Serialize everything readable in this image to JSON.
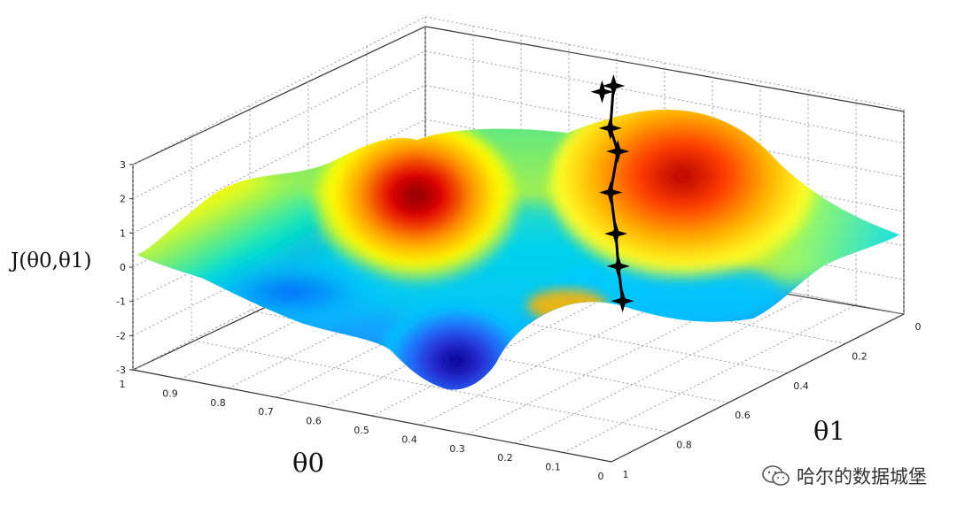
{
  "chart_data": {
    "type": "surface",
    "title": "",
    "xlabel": "θ0",
    "ylabel": "θ1",
    "zlabel": "J(θ0,θ1)",
    "x_ticks": [
      "1",
      "0.9",
      "0.8",
      "0.7",
      "0.6",
      "0.5",
      "0.4",
      "0.3",
      "0.2",
      "0.1",
      "0"
    ],
    "y_ticks": [
      "0",
      "0.2",
      "0.4",
      "0.6",
      "0.8",
      "1"
    ],
    "z_ticks": [
      "3",
      "2",
      "1",
      "0",
      "-1",
      "-2",
      "-3"
    ],
    "xlim": [
      0,
      1
    ],
    "ylim": [
      0,
      1
    ],
    "zlim": [
      -3,
      3
    ],
    "grid": true,
    "colormap": [
      "#00008b",
      "#1e64ff",
      "#00c8ff",
      "#64ffa0",
      "#ffff00",
      "#ff9600",
      "#e60000",
      "#800000"
    ],
    "path_color": "#000000",
    "path_markers": [
      {
        "theta0": 0.6,
        "theta1": 0.05,
        "J": 2.1
      },
      {
        "theta0": 0.57,
        "theta1": 0.06,
        "J": 2.4
      },
      {
        "theta0": 0.54,
        "theta1": 0.12,
        "J": 1.5
      },
      {
        "theta0": 0.5,
        "theta1": 0.16,
        "J": 1.1
      },
      {
        "theta0": 0.46,
        "theta1": 0.25,
        "J": 0.4
      },
      {
        "theta0": 0.4,
        "theta1": 0.33,
        "J": -0.3
      },
      {
        "theta0": 0.34,
        "theta1": 0.42,
        "J": -0.7
      },
      {
        "theta0": 0.27,
        "theta1": 0.52,
        "J": -1.1
      }
    ]
  },
  "watermark": {
    "text": "哈尔的数据城堡"
  }
}
